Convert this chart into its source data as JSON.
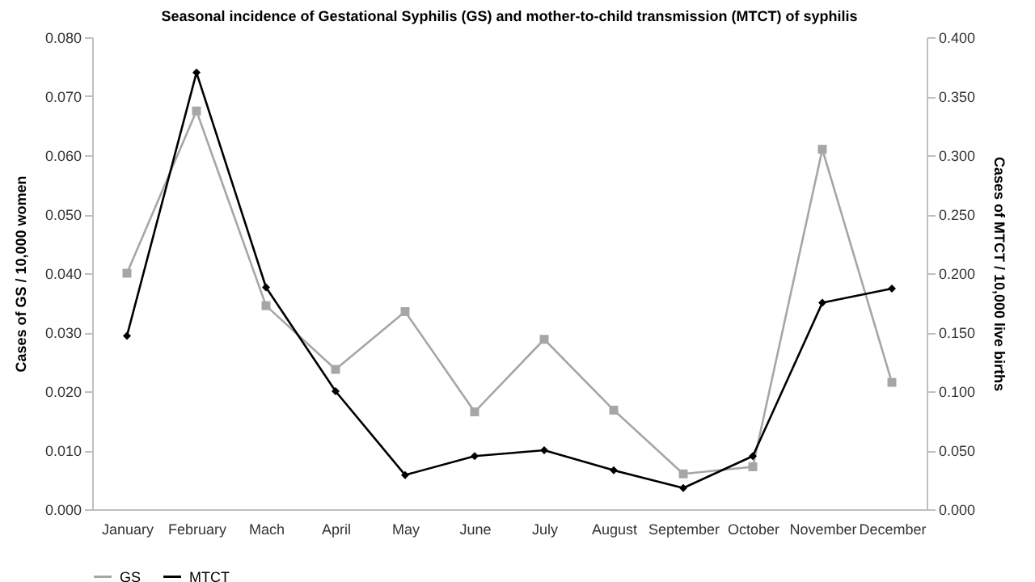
{
  "chart_data": {
    "type": "line",
    "title": "Seasonal incidence of Gestational Syphilis (GS) and mother-to-child transmission (MTCT) of syphilis",
    "categories": [
      "January",
      "February",
      "Mach",
      "April",
      "May",
      "June",
      "July",
      "August",
      "September",
      "October",
      "November",
      "December"
    ],
    "ylabel": "Cases of GS / 10,000 women",
    "y2label": "Cases of MTCT / 10,000 live births",
    "ylim": [
      0,
      0.08
    ],
    "yticks": [
      {
        "value": 0,
        "label": "0.000"
      },
      {
        "value": 0.01,
        "label": "0.010"
      },
      {
        "value": 0.02,
        "label": "0.020"
      },
      {
        "value": 0.03,
        "label": "0.030"
      },
      {
        "value": 0.04,
        "label": "0.040"
      },
      {
        "value": 0.05,
        "label": "0.050"
      },
      {
        "value": 0.06,
        "label": "0.060"
      },
      {
        "value": 0.07,
        "label": "0.070"
      },
      {
        "value": 0.08,
        "label": "0.080"
      }
    ],
    "y2lim": [
      0,
      0.4
    ],
    "y2ticks": [
      {
        "value": 0,
        "label": "0.000"
      },
      {
        "value": 0.05,
        "label": "0.050"
      },
      {
        "value": 0.1,
        "label": "0.100"
      },
      {
        "value": 0.15,
        "label": "0.150"
      },
      {
        "value": 0.2,
        "label": "0.200"
      },
      {
        "value": 0.25,
        "label": "0.250"
      },
      {
        "value": 0.3,
        "label": "0.300"
      },
      {
        "value": 0.35,
        "label": "0.350"
      },
      {
        "value": 0.4,
        "label": "0.400"
      }
    ],
    "legend": "bottom",
    "grid": false,
    "series": [
      {
        "name": "GS",
        "color": "#a6a6a6",
        "marker": "square",
        "values": [
          0.04,
          0.0675,
          0.0345,
          0.0237,
          0.0335,
          0.0165,
          0.0288,
          0.0168,
          0.006,
          0.0072,
          0.061,
          0.0215
        ]
      },
      {
        "name": "MTCT",
        "color": "#000000",
        "marker": "diamond",
        "axis": "y2",
        "values": [
          0.147,
          0.37,
          0.188,
          0.1,
          0.029,
          0.045,
          0.05,
          0.033,
          0.018,
          0.045,
          0.175,
          0.187
        ]
      }
    ]
  }
}
